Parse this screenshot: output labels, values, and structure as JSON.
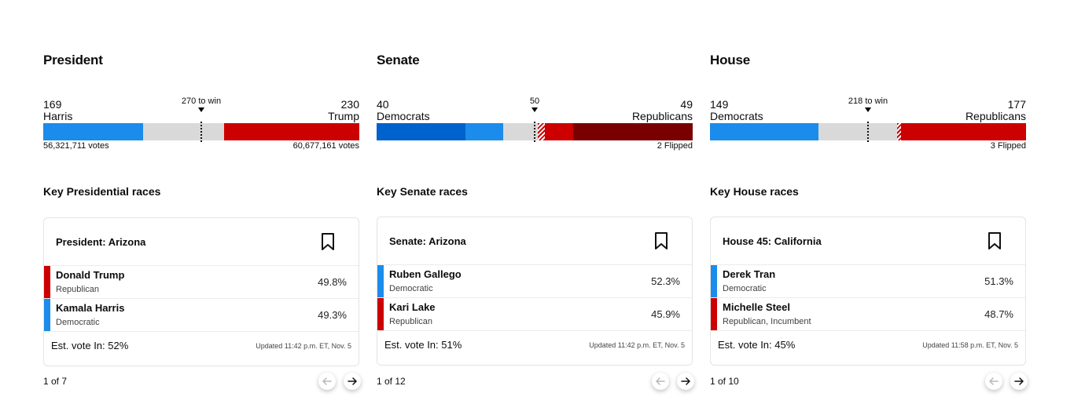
{
  "colors": {
    "dem": "#1b8ceb",
    "dem_dark": "#0062cc",
    "rep": "#cc0000",
    "rep_dark": "#7a0000",
    "undecided": "#d9d9d9"
  },
  "sections": [
    {
      "title": "President",
      "left_count": "169",
      "left_name": "Harris",
      "right_count": "230",
      "right_name": "Trump",
      "win_label": "270 to win",
      "left_sub": "56,321,711 votes",
      "right_sub": "60,677,161 votes",
      "key_title": "Key Presidential races",
      "card": {
        "race": "President: Arizona",
        "rows": [
          {
            "name": "Donald Trump",
            "party": "Republican",
            "pct": "49.8%",
            "side": "rep"
          },
          {
            "name": "Kamala Harris",
            "party": "Democratic",
            "pct": "49.3%",
            "side": "dem"
          }
        ],
        "est": "Est. vote In: 52%",
        "updated": "Updated 11:42 p.m. ET, Nov. 5"
      },
      "pager": "1 of 7"
    },
    {
      "title": "Senate",
      "left_count": "40",
      "left_name": "Democrats",
      "right_count": "49",
      "right_name": "Republicans",
      "win_label": "50",
      "left_sub": "",
      "right_sub": "2 Flipped",
      "key_title": "Key Senate races",
      "card": {
        "race": "Senate: Arizona",
        "rows": [
          {
            "name": "Ruben Gallego",
            "party": "Democratic",
            "pct": "52.3%",
            "side": "dem"
          },
          {
            "name": "Kari Lake",
            "party": "Republican",
            "pct": "45.9%",
            "side": "rep"
          }
        ],
        "est": "Est. vote In: 51%",
        "updated": "Updated 11:42 p.m. ET, Nov. 5"
      },
      "pager": "1 of 12"
    },
    {
      "title": "House",
      "left_count": "149",
      "left_name": "Democrats",
      "right_count": "177",
      "right_name": "Republicans",
      "win_label": "218 to win",
      "left_sub": "",
      "right_sub": "3 Flipped",
      "key_title": "Key House races",
      "card": {
        "race": "House 45: California",
        "rows": [
          {
            "name": "Derek Tran",
            "party": "Democratic",
            "pct": "51.3%",
            "side": "dem"
          },
          {
            "name": "Michelle Steel",
            "party": "Republican, Incumbent",
            "pct": "48.7%",
            "side": "rep"
          }
        ],
        "est": "Est. vote In: 45%",
        "updated": "Updated 11:58 p.m. ET, Nov. 5"
      },
      "pager": "1 of 10"
    }
  ],
  "icons": {
    "bookmark": "bookmark-icon",
    "prev": "arrow-left-icon",
    "next": "arrow-right-icon"
  }
}
